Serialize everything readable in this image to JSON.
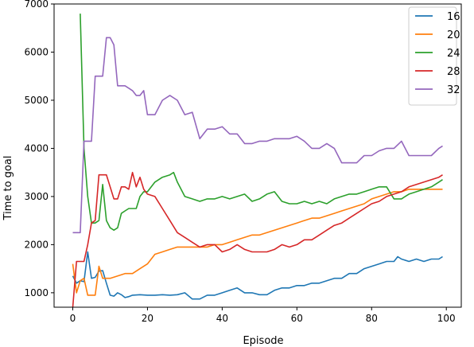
{
  "chart_data": {
    "type": "line",
    "xlabel": "Episode",
    "ylabel": "Time to goal",
    "xlim": [
      -5,
      104
    ],
    "ylim": [
      700,
      7000
    ],
    "xticks": [
      0,
      20,
      40,
      60,
      80,
      100
    ],
    "yticks": [
      1000,
      2000,
      3000,
      4000,
      5000,
      6000,
      7000
    ],
    "legend_position": "top-right",
    "series": [
      {
        "name": "16",
        "color": "#1f77b4",
        "x": [
          0,
          1,
          2,
          3,
          4,
          5,
          6,
          7,
          8,
          9,
          10,
          11,
          12,
          13,
          14,
          15,
          16,
          18,
          20,
          22,
          24,
          26,
          28,
          30,
          32,
          34,
          36,
          38,
          40,
          42,
          44,
          46,
          48,
          50,
          52,
          54,
          56,
          58,
          60,
          62,
          64,
          66,
          68,
          70,
          72,
          74,
          76,
          78,
          80,
          82,
          84,
          86,
          87,
          88,
          90,
          92,
          94,
          96,
          98,
          99
        ],
        "y": [
          1350,
          1200,
          1250,
          1230,
          1850,
          1300,
          1320,
          1450,
          1460,
          1200,
          950,
          930,
          1000,
          960,
          900,
          920,
          950,
          960,
          950,
          950,
          960,
          950,
          960,
          1000,
          870,
          870,
          950,
          950,
          1000,
          1050,
          1100,
          1000,
          1000,
          960,
          960,
          1050,
          1100,
          1100,
          1150,
          1150,
          1200,
          1200,
          1250,
          1300,
          1300,
          1400,
          1400,
          1500,
          1550,
          1600,
          1650,
          1650,
          1750,
          1700,
          1650,
          1700,
          1650,
          1700,
          1700,
          1750
        ]
      },
      {
        "name": "20",
        "color": "#ff7f0e",
        "x": [
          0,
          1,
          2,
          3,
          4,
          5,
          6,
          7,
          8,
          9,
          10,
          12,
          14,
          16,
          18,
          20,
          22,
          24,
          26,
          28,
          30,
          32,
          34,
          36,
          38,
          40,
          42,
          44,
          46,
          48,
          50,
          52,
          54,
          56,
          58,
          60,
          62,
          64,
          66,
          68,
          70,
          72,
          74,
          76,
          78,
          80,
          82,
          84,
          86,
          88,
          90,
          92,
          94,
          96,
          98,
          99
        ],
        "y": [
          1600,
          1000,
          1250,
          1300,
          950,
          950,
          950,
          1550,
          1300,
          1300,
          1300,
          1350,
          1400,
          1400,
          1500,
          1600,
          1800,
          1850,
          1900,
          1950,
          1950,
          1950,
          1950,
          1950,
          2000,
          2000,
          2050,
          2100,
          2150,
          2200,
          2200,
          2250,
          2300,
          2350,
          2400,
          2450,
          2500,
          2550,
          2550,
          2600,
          2650,
          2700,
          2750,
          2800,
          2850,
          2950,
          3000,
          3050,
          3100,
          3100,
          3150,
          3150,
          3150,
          3150,
          3150,
          3150
        ]
      },
      {
        "name": "24",
        "color": "#2ca02c",
        "x": [
          2,
          3,
          4,
          5,
          6,
          7,
          8,
          9,
          10,
          11,
          12,
          13,
          14,
          15,
          16,
          17,
          18,
          19,
          20,
          22,
          24,
          26,
          27,
          28,
          30,
          32,
          34,
          36,
          38,
          40,
          42,
          44,
          46,
          48,
          50,
          52,
          54,
          56,
          58,
          60,
          62,
          64,
          66,
          68,
          70,
          72,
          74,
          76,
          78,
          80,
          82,
          84,
          86,
          88,
          90,
          92,
          94,
          96,
          98,
          99
        ],
        "y": [
          6800,
          4000,
          3000,
          2450,
          2450,
          2500,
          3250,
          2500,
          2350,
          2300,
          2350,
          2650,
          2700,
          2750,
          2750,
          2750,
          3000,
          3100,
          3100,
          3300,
          3400,
          3450,
          3500,
          3300,
          3000,
          2950,
          2900,
          2950,
          2950,
          3000,
          2950,
          3000,
          3050,
          2900,
          2950,
          3050,
          3100,
          2900,
          2850,
          2850,
          2900,
          2850,
          2900,
          2850,
          2950,
          3000,
          3050,
          3050,
          3100,
          3150,
          3200,
          3200,
          2950,
          2950,
          3050,
          3100,
          3150,
          3200,
          3300,
          3350
        ]
      },
      {
        "name": "28",
        "color": "#d62728",
        "x": [
          0,
          1,
          2,
          3,
          4,
          5,
          6,
          7,
          8,
          9,
          10,
          11,
          12,
          13,
          14,
          15,
          16,
          17,
          18,
          19,
          20,
          22,
          24,
          26,
          28,
          30,
          32,
          34,
          36,
          38,
          40,
          42,
          44,
          46,
          48,
          50,
          52,
          54,
          56,
          58,
          60,
          62,
          64,
          66,
          68,
          70,
          72,
          74,
          76,
          78,
          80,
          82,
          84,
          86,
          88,
          90,
          92,
          94,
          96,
          98,
          99
        ],
        "y": [
          700,
          1650,
          1650,
          1650,
          2000,
          2450,
          2500,
          3450,
          3450,
          3450,
          3200,
          2950,
          2950,
          3200,
          3200,
          3150,
          3500,
          3200,
          3400,
          3150,
          3050,
          3000,
          2750,
          2500,
          2250,
          2150,
          2050,
          1950,
          2000,
          2000,
          1850,
          1900,
          2000,
          1900,
          1850,
          1850,
          1850,
          1900,
          2000,
          1950,
          2000,
          2100,
          2100,
          2200,
          2300,
          2400,
          2450,
          2550,
          2650,
          2750,
          2850,
          2900,
          3000,
          3050,
          3100,
          3200,
          3250,
          3300,
          3350,
          3400,
          3450
        ]
      },
      {
        "name": "32",
        "color": "#9467bd",
        "x": [
          0,
          1,
          2,
          3,
          4,
          5,
          6,
          7,
          8,
          9,
          10,
          11,
          12,
          13,
          14,
          15,
          16,
          17,
          18,
          19,
          20,
          22,
          24,
          26,
          28,
          30,
          32,
          34,
          36,
          38,
          40,
          42,
          44,
          46,
          48,
          50,
          52,
          54,
          56,
          58,
          60,
          62,
          64,
          66,
          68,
          70,
          72,
          74,
          76,
          78,
          80,
          82,
          84,
          86,
          88,
          90,
          92,
          94,
          96,
          98,
          99
        ],
        "y": [
          2250,
          2250,
          2250,
          4150,
          4150,
          4150,
          5500,
          5500,
          5500,
          6300,
          6300,
          6150,
          5300,
          5300,
          5300,
          5250,
          5200,
          5100,
          5100,
          5200,
          4700,
          4700,
          5000,
          5100,
          5000,
          4700,
          4750,
          4200,
          4400,
          4400,
          4450,
          4300,
          4300,
          4100,
          4100,
          4150,
          4150,
          4200,
          4200,
          4200,
          4250,
          4150,
          4000,
          4000,
          4100,
          4000,
          3700,
          3700,
          3700,
          3850,
          3850,
          3950,
          4000,
          4000,
          4150,
          3850,
          3850,
          3850,
          3850,
          4000,
          4050
        ]
      }
    ]
  }
}
